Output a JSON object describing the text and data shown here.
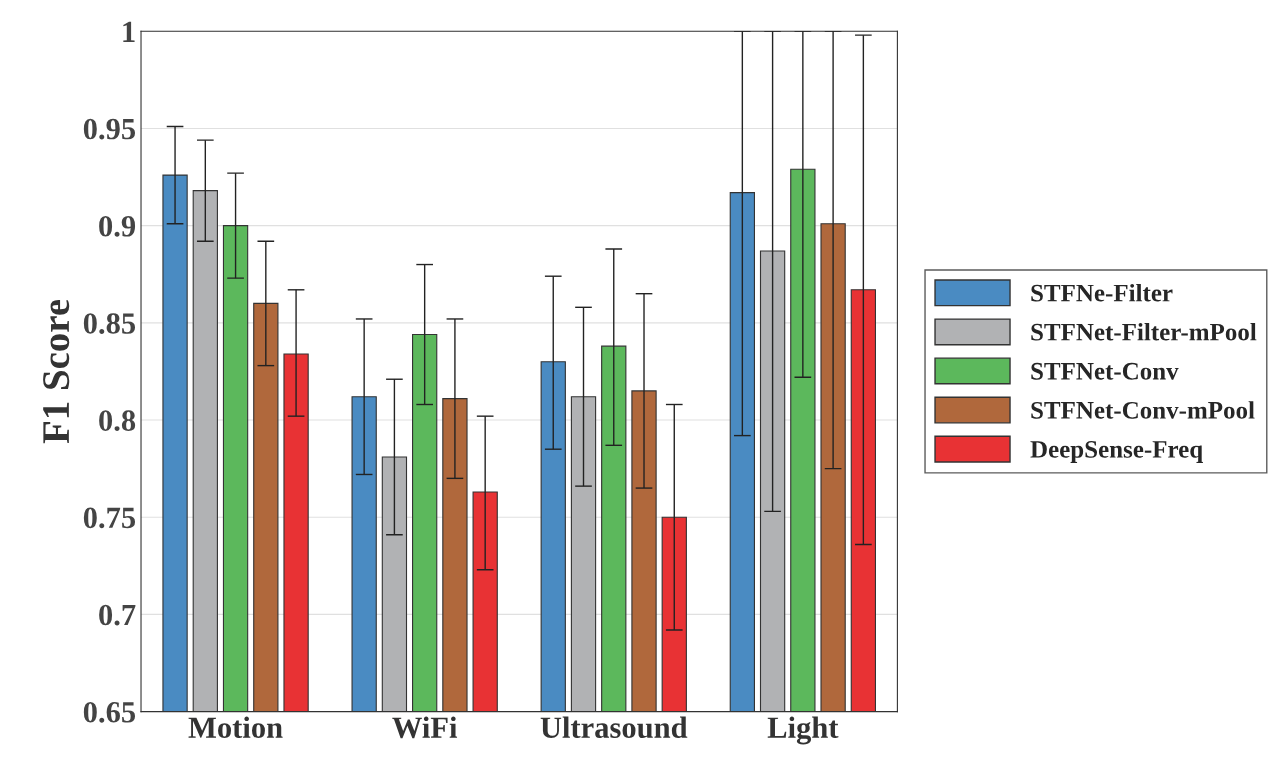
{
  "chart_data": {
    "type": "bar",
    "ylabel": "F1 Score",
    "categories": [
      "Motion",
      "WiFi",
      "Ultrasound",
      "Light"
    ],
    "series": [
      {
        "name": "STFNe-Filter",
        "color": "#4a8bc2",
        "values": [
          0.926,
          0.812,
          0.83,
          0.917
        ],
        "errors": [
          [
            0.901,
            0.951
          ],
          [
            0.772,
            0.852
          ],
          [
            0.785,
            0.874
          ],
          [
            0.792,
            1
          ]
        ]
      },
      {
        "name": "STFNet-Filter-mPool",
        "color": "#b1b2b4",
        "values": [
          0.918,
          0.781,
          0.812,
          0.887
        ],
        "errors": [
          [
            0.892,
            0.944
          ],
          [
            0.741,
            0.821
          ],
          [
            0.766,
            0.858
          ],
          [
            0.753,
            1
          ]
        ]
      },
      {
        "name": "STFNet-Conv",
        "color": "#5cb85c",
        "values": [
          0.9,
          0.844,
          0.838,
          0.929
        ],
        "errors": [
          [
            0.873,
            0.927
          ],
          [
            0.808,
            0.88
          ],
          [
            0.787,
            0.888
          ],
          [
            0.822,
            1
          ]
        ]
      },
      {
        "name": "STFNet-Conv-mPool",
        "color": "#b0683c",
        "values": [
          0.86,
          0.811,
          0.815,
          0.901
        ],
        "errors": [
          [
            0.828,
            0.892
          ],
          [
            0.77,
            0.852
          ],
          [
            0.765,
            0.865
          ],
          [
            0.775,
            1
          ]
        ]
      },
      {
        "name": "DeepSense-Freq",
        "color": "#e83234",
        "values": [
          0.834,
          0.763,
          0.75,
          0.867
        ],
        "errors": [
          [
            0.802,
            0.867
          ],
          [
            0.723,
            0.802
          ],
          [
            0.692,
            0.808
          ],
          [
            0.736,
            0.998
          ]
        ]
      }
    ],
    "ylim": [
      0.65,
      1
    ],
    "yticks": [
      0.65,
      0.7,
      0.75,
      0.8,
      0.85,
      0.9,
      0.95,
      1
    ],
    "grid": "y",
    "legend": "right"
  }
}
